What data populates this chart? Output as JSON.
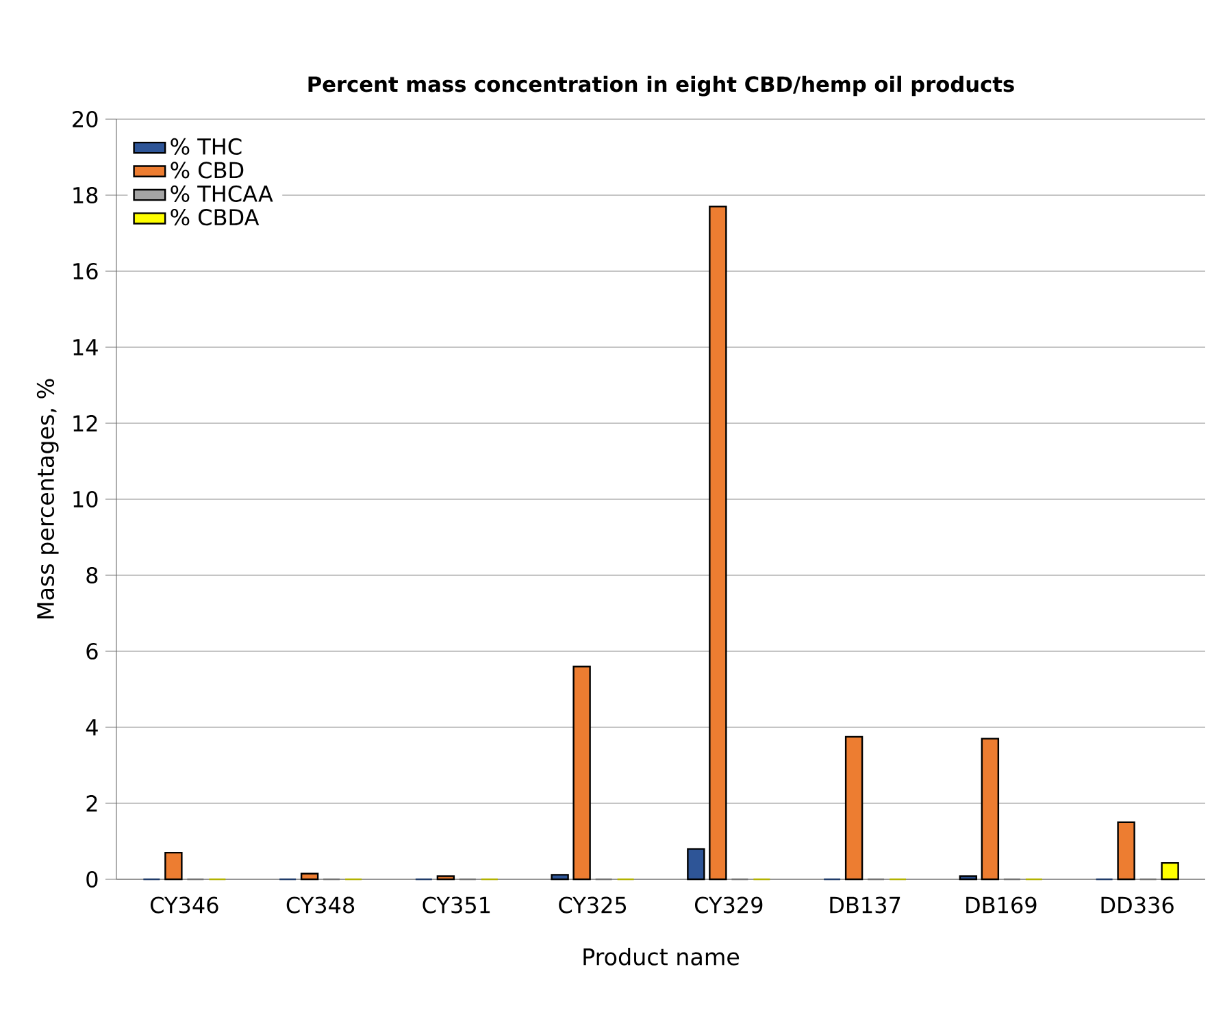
{
  "chart_data": {
    "type": "bar",
    "title": "Percent mass concentration in eight CBD/hemp oil products",
    "xlabel": "Product name",
    "ylabel": "Mass percentages, %",
    "categories": [
      "CY346",
      "CY348",
      "CY351",
      "CY325",
      "CY329",
      "DB137",
      "DB169",
      "DD336"
    ],
    "series": [
      {
        "name": "% THC",
        "color": "#2e5597",
        "values": [
          0,
          0,
          0,
          0.12,
          0.8,
          0,
          0.08,
          0
        ]
      },
      {
        "name": "% CBD",
        "color": "#ed7d31",
        "values": [
          0.7,
          0.15,
          0.08,
          5.6,
          17.7,
          3.75,
          3.7,
          1.5
        ]
      },
      {
        "name": "% THCAA",
        "color": "#a5a5a5",
        "values": [
          0,
          0,
          0,
          0,
          0,
          0,
          0,
          0
        ]
      },
      {
        "name": "% CBDA",
        "color": "#ffff00",
        "values": [
          0,
          0,
          0,
          0,
          0,
          0,
          0,
          0.43
        ]
      }
    ],
    "ylim": [
      0,
      20
    ],
    "yticks": [
      0,
      2,
      4,
      6,
      8,
      10,
      12,
      14,
      16,
      18,
      20
    ],
    "grid": "y",
    "legend": "top left"
  }
}
